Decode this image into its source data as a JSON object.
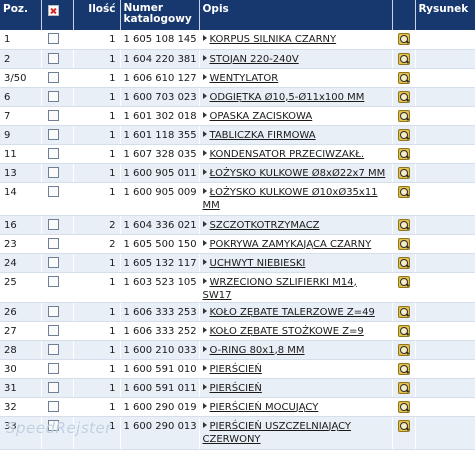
{
  "table": {
    "headers": {
      "poz": "Poz.",
      "ilosc": "Ilość",
      "numer_line1": "Numer",
      "numer_line2": "katalogowy",
      "opis": "Opis",
      "rysunek": "Rysunek"
    },
    "rows": [
      {
        "poz": "1",
        "qty": "1",
        "catalog": "1 605 108 145",
        "desc": "KORPUS SILNIKA CZARNY"
      },
      {
        "poz": "2",
        "qty": "1",
        "catalog": "1 604 220 381",
        "desc": "STOJAN 220-240V"
      },
      {
        "poz": "3/50",
        "qty": "1",
        "catalog": "1 606 610 127",
        "desc": "WENTYLATOR"
      },
      {
        "poz": "6",
        "qty": "1",
        "catalog": "1 600 703 023",
        "desc": "ODGIĘTKA Ø10,5-Ø11x100 MM"
      },
      {
        "poz": "7",
        "qty": "1",
        "catalog": "1 601 302 018",
        "desc": "OPASKA ZACISKOWA"
      },
      {
        "poz": "9",
        "qty": "1",
        "catalog": "1 601 118 355",
        "desc": "TABLICZKA FIRMOWA"
      },
      {
        "poz": "11",
        "qty": "1",
        "catalog": "1 607 328 035",
        "desc": "KONDENSATOR PRZECIWZAKŁ."
      },
      {
        "poz": "13",
        "qty": "1",
        "catalog": "1 600 905 011",
        "desc": "ŁOŻYSKO KULKOWE Ø8xØ22x7 MM"
      },
      {
        "poz": "14",
        "qty": "1",
        "catalog": "1 600 905 009",
        "desc": "ŁOŻYSKO KULKOWE Ø10xØ35x11 MM"
      },
      {
        "poz": "16",
        "qty": "2",
        "catalog": "1 604 336 021",
        "desc": "SZCZOTKOTRZYMACZ"
      },
      {
        "poz": "23",
        "qty": "2",
        "catalog": "1 605 500 150",
        "desc": "POKRYWA ZAMYKAJĄCA CZARNY"
      },
      {
        "poz": "24",
        "qty": "1",
        "catalog": "1 605 132 117",
        "desc": "UCHWYT NIEBIESKI"
      },
      {
        "poz": "25",
        "qty": "1",
        "catalog": "1 603 523 105",
        "desc": "WRZECIONO SZLIFIERKI M14, SW17"
      },
      {
        "poz": "26",
        "qty": "1",
        "catalog": "1 606 333 253",
        "desc": "KOŁO ZĘBATE TALERZOWE Z=49"
      },
      {
        "poz": "27",
        "qty": "1",
        "catalog": "1 606 333 252",
        "desc": "KOŁO ZĘBATE STOŻKOWE Z=9"
      },
      {
        "poz": "28",
        "qty": "1",
        "catalog": "1 600 210 033",
        "desc": "O-RING 80x1,8 MM"
      },
      {
        "poz": "30",
        "qty": "1",
        "catalog": "1 600 591 010",
        "desc": "PIERŚCIEŃ"
      },
      {
        "poz": "31",
        "qty": "1",
        "catalog": "1 600 591 011",
        "desc": "PIERŚCIEŃ"
      },
      {
        "poz": "32",
        "qty": "1",
        "catalog": "1 600 290 019",
        "desc": "PIERŚCIEŃ MOCUJĄCY"
      },
      {
        "poz": "33",
        "qty": "1",
        "catalog": "1 600 290 013",
        "desc": "PIERŚCIEŃ USZCZELNIAJĄCY CZERWONY"
      }
    ]
  },
  "icons": {
    "select_all": "close-x-icon",
    "row_arrow": "arrow-right-icon",
    "drawing": "magnifier-drawing-icon"
  },
  "colors": {
    "header_bg": "#16386f",
    "row_alt_bg": "#e9eff7",
    "icon_gold": "#e4c24a"
  },
  "watermark": "SpeedRejster"
}
